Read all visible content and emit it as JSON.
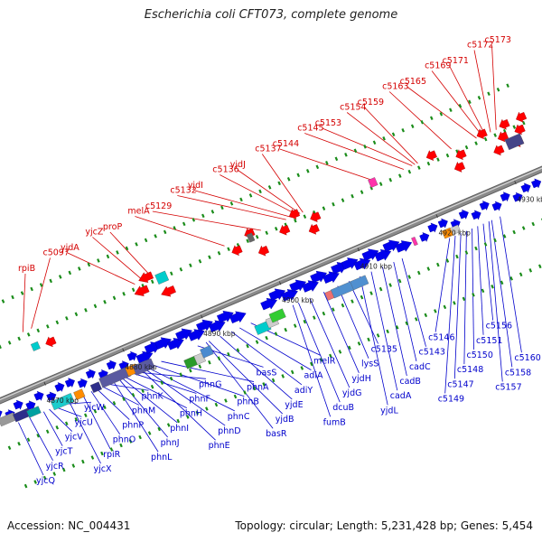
{
  "title": "Escherichia coli CFT073, complete genome",
  "footer": {
    "accession": "Accession: NC_004431",
    "summary": "Topology: circular; Length: 5,231,428 bp; Genes: 5,454"
  },
  "colors": {
    "upper_label": "#d40000",
    "lower_label": "#0000cc",
    "backbone": "#8a8a8a",
    "forward_gene": "#0000ee",
    "reverse_gene": "#ff0000",
    "dot": "#1a8c1a"
  },
  "ticks": [
    {
      "t": 0.095,
      "label": "4870 kbp"
    },
    {
      "t": 0.235,
      "label": "4880 kbp"
    },
    {
      "t": 0.375,
      "label": "4890 kbp"
    },
    {
      "t": 0.515,
      "label": "4900 kbp"
    },
    {
      "t": 0.655,
      "label": "4910 kbp"
    },
    {
      "t": 0.795,
      "label": "4920 kbp"
    },
    {
      "t": 0.935,
      "label": "4930 kbp"
    }
  ],
  "upper_labels": [
    {
      "text": "rpiB",
      "t": 0.095
    },
    {
      "text": "c5097",
      "t": 0.11
    },
    {
      "text": "yjdA",
      "t": 0.295
    },
    {
      "text": "yjcZ",
      "t": 0.31
    },
    {
      "text": "proP",
      "t": 0.325
    },
    {
      "text": "melA",
      "t": 0.455
    },
    {
      "text": "c5129",
      "t": 0.52
    },
    {
      "text": "c5132",
      "t": 0.565
    },
    {
      "text": "yjdI",
      "t": 0.575
    },
    {
      "text": "c5136",
      "t": 0.585
    },
    {
      "text": "yjdJ",
      "t": 0.59
    },
    {
      "text": "c5137",
      "t": 0.595
    },
    {
      "text": "c5144",
      "t": 0.725
    },
    {
      "text": "c5145",
      "t": 0.775
    },
    {
      "text": "c5153",
      "t": 0.79
    },
    {
      "text": "c5154",
      "t": 0.795
    },
    {
      "text": "c5159",
      "t": 0.8
    },
    {
      "text": "c5163",
      "t": 0.86
    },
    {
      "text": "c5165",
      "t": 0.905
    },
    {
      "text": "c5169",
      "t": 0.915
    },
    {
      "text": "c5171",
      "t": 0.92
    },
    {
      "text": "c5172",
      "t": 0.93
    },
    {
      "text": "c5173",
      "t": 0.94
    }
  ],
  "lower_labels": [
    {
      "text": "yjcQ",
      "t": 0.03
    },
    {
      "text": "yjcR",
      "t": 0.05
    },
    {
      "text": "yjcT",
      "t": 0.075
    },
    {
      "text": "yjcV",
      "t": 0.085
    },
    {
      "text": "yjcU",
      "t": 0.095
    },
    {
      "text": "yjcW",
      "t": 0.105
    },
    {
      "text": "yjcX",
      "t": 0.12
    },
    {
      "text": "rpiR",
      "t": 0.145
    },
    {
      "text": "phnO",
      "t": 0.16
    },
    {
      "text": "phnP",
      "t": 0.17
    },
    {
      "text": "phnM",
      "t": 0.18
    },
    {
      "text": "phnK",
      "t": 0.19
    },
    {
      "text": "phnL",
      "t": 0.2
    },
    {
      "text": "phnJ",
      "t": 0.21
    },
    {
      "text": "phnI",
      "t": 0.215
    },
    {
      "text": "phnH",
      "t": 0.22
    },
    {
      "text": "phnF",
      "t": 0.235
    },
    {
      "text": "phnG",
      "t": 0.24
    },
    {
      "text": "phnE",
      "t": 0.25
    },
    {
      "text": "phnD",
      "t": 0.255
    },
    {
      "text": "phnC",
      "t": 0.26
    },
    {
      "text": "phnB",
      "t": 0.27
    },
    {
      "text": "phnA",
      "t": 0.285
    },
    {
      "text": "basS",
      "t": 0.35
    },
    {
      "text": "basR",
      "t": 0.365
    },
    {
      "text": "yjdB",
      "t": 0.37
    },
    {
      "text": "yjdE",
      "t": 0.39
    },
    {
      "text": "adiY",
      "t": 0.41
    },
    {
      "text": "adiA",
      "t": 0.425
    },
    {
      "text": "melR",
      "t": 0.445
    },
    {
      "text": "fumB",
      "t": 0.52
    },
    {
      "text": "dcuB",
      "t": 0.53
    },
    {
      "text": "yjdG",
      "t": 0.55
    },
    {
      "text": "yjdH",
      "t": 0.575
    },
    {
      "text": "lysS",
      "t": 0.6
    },
    {
      "text": "c5135",
      "t": 0.62
    },
    {
      "text": "yjdL",
      "t": 0.64
    },
    {
      "text": "cadA",
      "t": 0.66
    },
    {
      "text": "cadB",
      "t": 0.68
    },
    {
      "text": "cadC",
      "t": 0.7
    },
    {
      "text": "c5143",
      "t": 0.715
    },
    {
      "text": "c5146",
      "t": 0.8
    },
    {
      "text": "c5149",
      "t": 0.81
    },
    {
      "text": "c5147",
      "t": 0.82
    },
    {
      "text": "c5148",
      "t": 0.83
    },
    {
      "text": "c5150",
      "t": 0.84
    },
    {
      "text": "c5151",
      "t": 0.85
    },
    {
      "text": "c5156",
      "t": 0.86
    },
    {
      "text": "c5157",
      "t": 0.87
    },
    {
      "text": "c5158",
      "t": 0.875
    },
    {
      "text": "c5160",
      "t": 0.89
    }
  ]
}
